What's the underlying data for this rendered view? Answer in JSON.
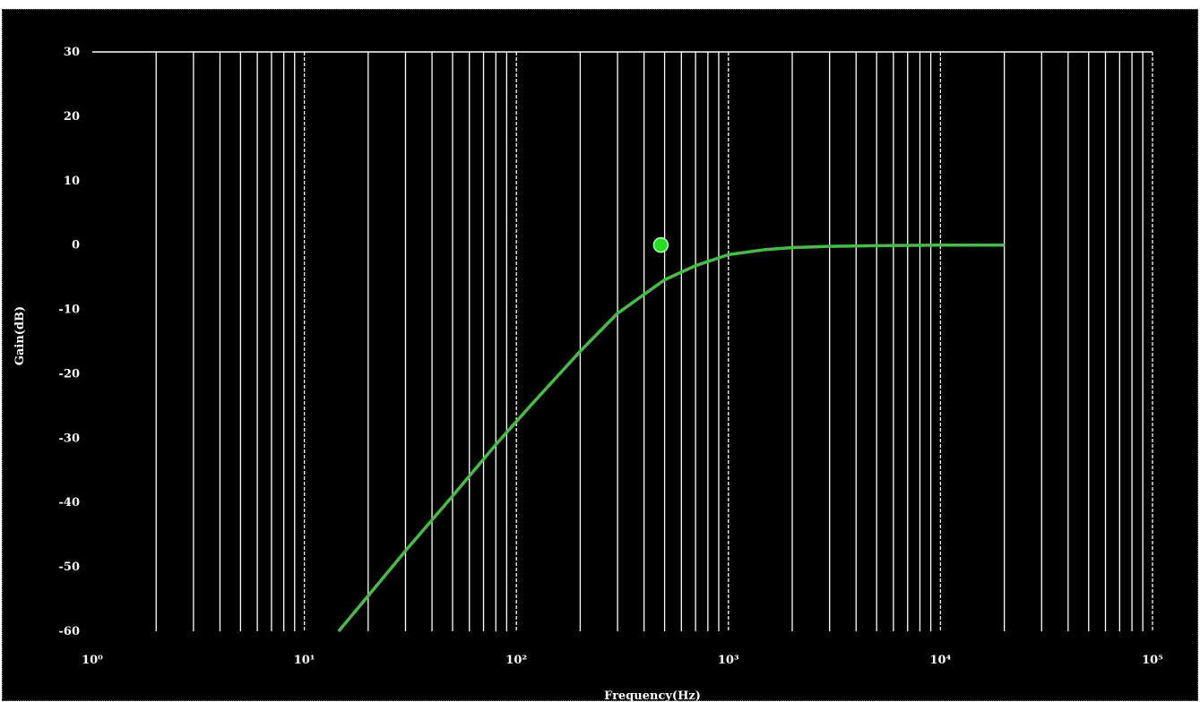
{
  "chart_data": {
    "type": "line",
    "title": "",
    "xlabel": "Frequency(Hz)",
    "ylabel": "Gain(dB)",
    "x_scale": "log",
    "xlim": [
      1,
      100000
    ],
    "ylim": [
      -60,
      30
    ],
    "grid": true,
    "x_tick_labels": [
      "10⁰",
      "10¹",
      "10²",
      "10³",
      "10⁴",
      "10⁵"
    ],
    "y_tick_labels": [
      "30",
      "20",
      "10",
      "0",
      "-10",
      "-20",
      "-30",
      "-40",
      "-50",
      "-60"
    ],
    "y_ticks": [
      30,
      20,
      10,
      0,
      -10,
      -20,
      -30,
      -40,
      -50,
      -60
    ],
    "series": [
      {
        "color": "#33cc33",
        "x": [
          14.5,
          20,
          30,
          50,
          80,
          120,
          200,
          300,
          500,
          700,
          1000,
          1500,
          2000,
          3000,
          5000,
          10000,
          20000
        ],
        "y": [
          -60,
          -54.5,
          -47.5,
          -39,
          -31,
          -24.5,
          -16.5,
          -10.6,
          -5.4,
          -3.2,
          -1.5,
          -0.7,
          -0.4,
          -0.2,
          -0.1,
          0,
          0
        ]
      }
    ],
    "markers": [
      {
        "x": 480,
        "y": 0
      }
    ]
  }
}
